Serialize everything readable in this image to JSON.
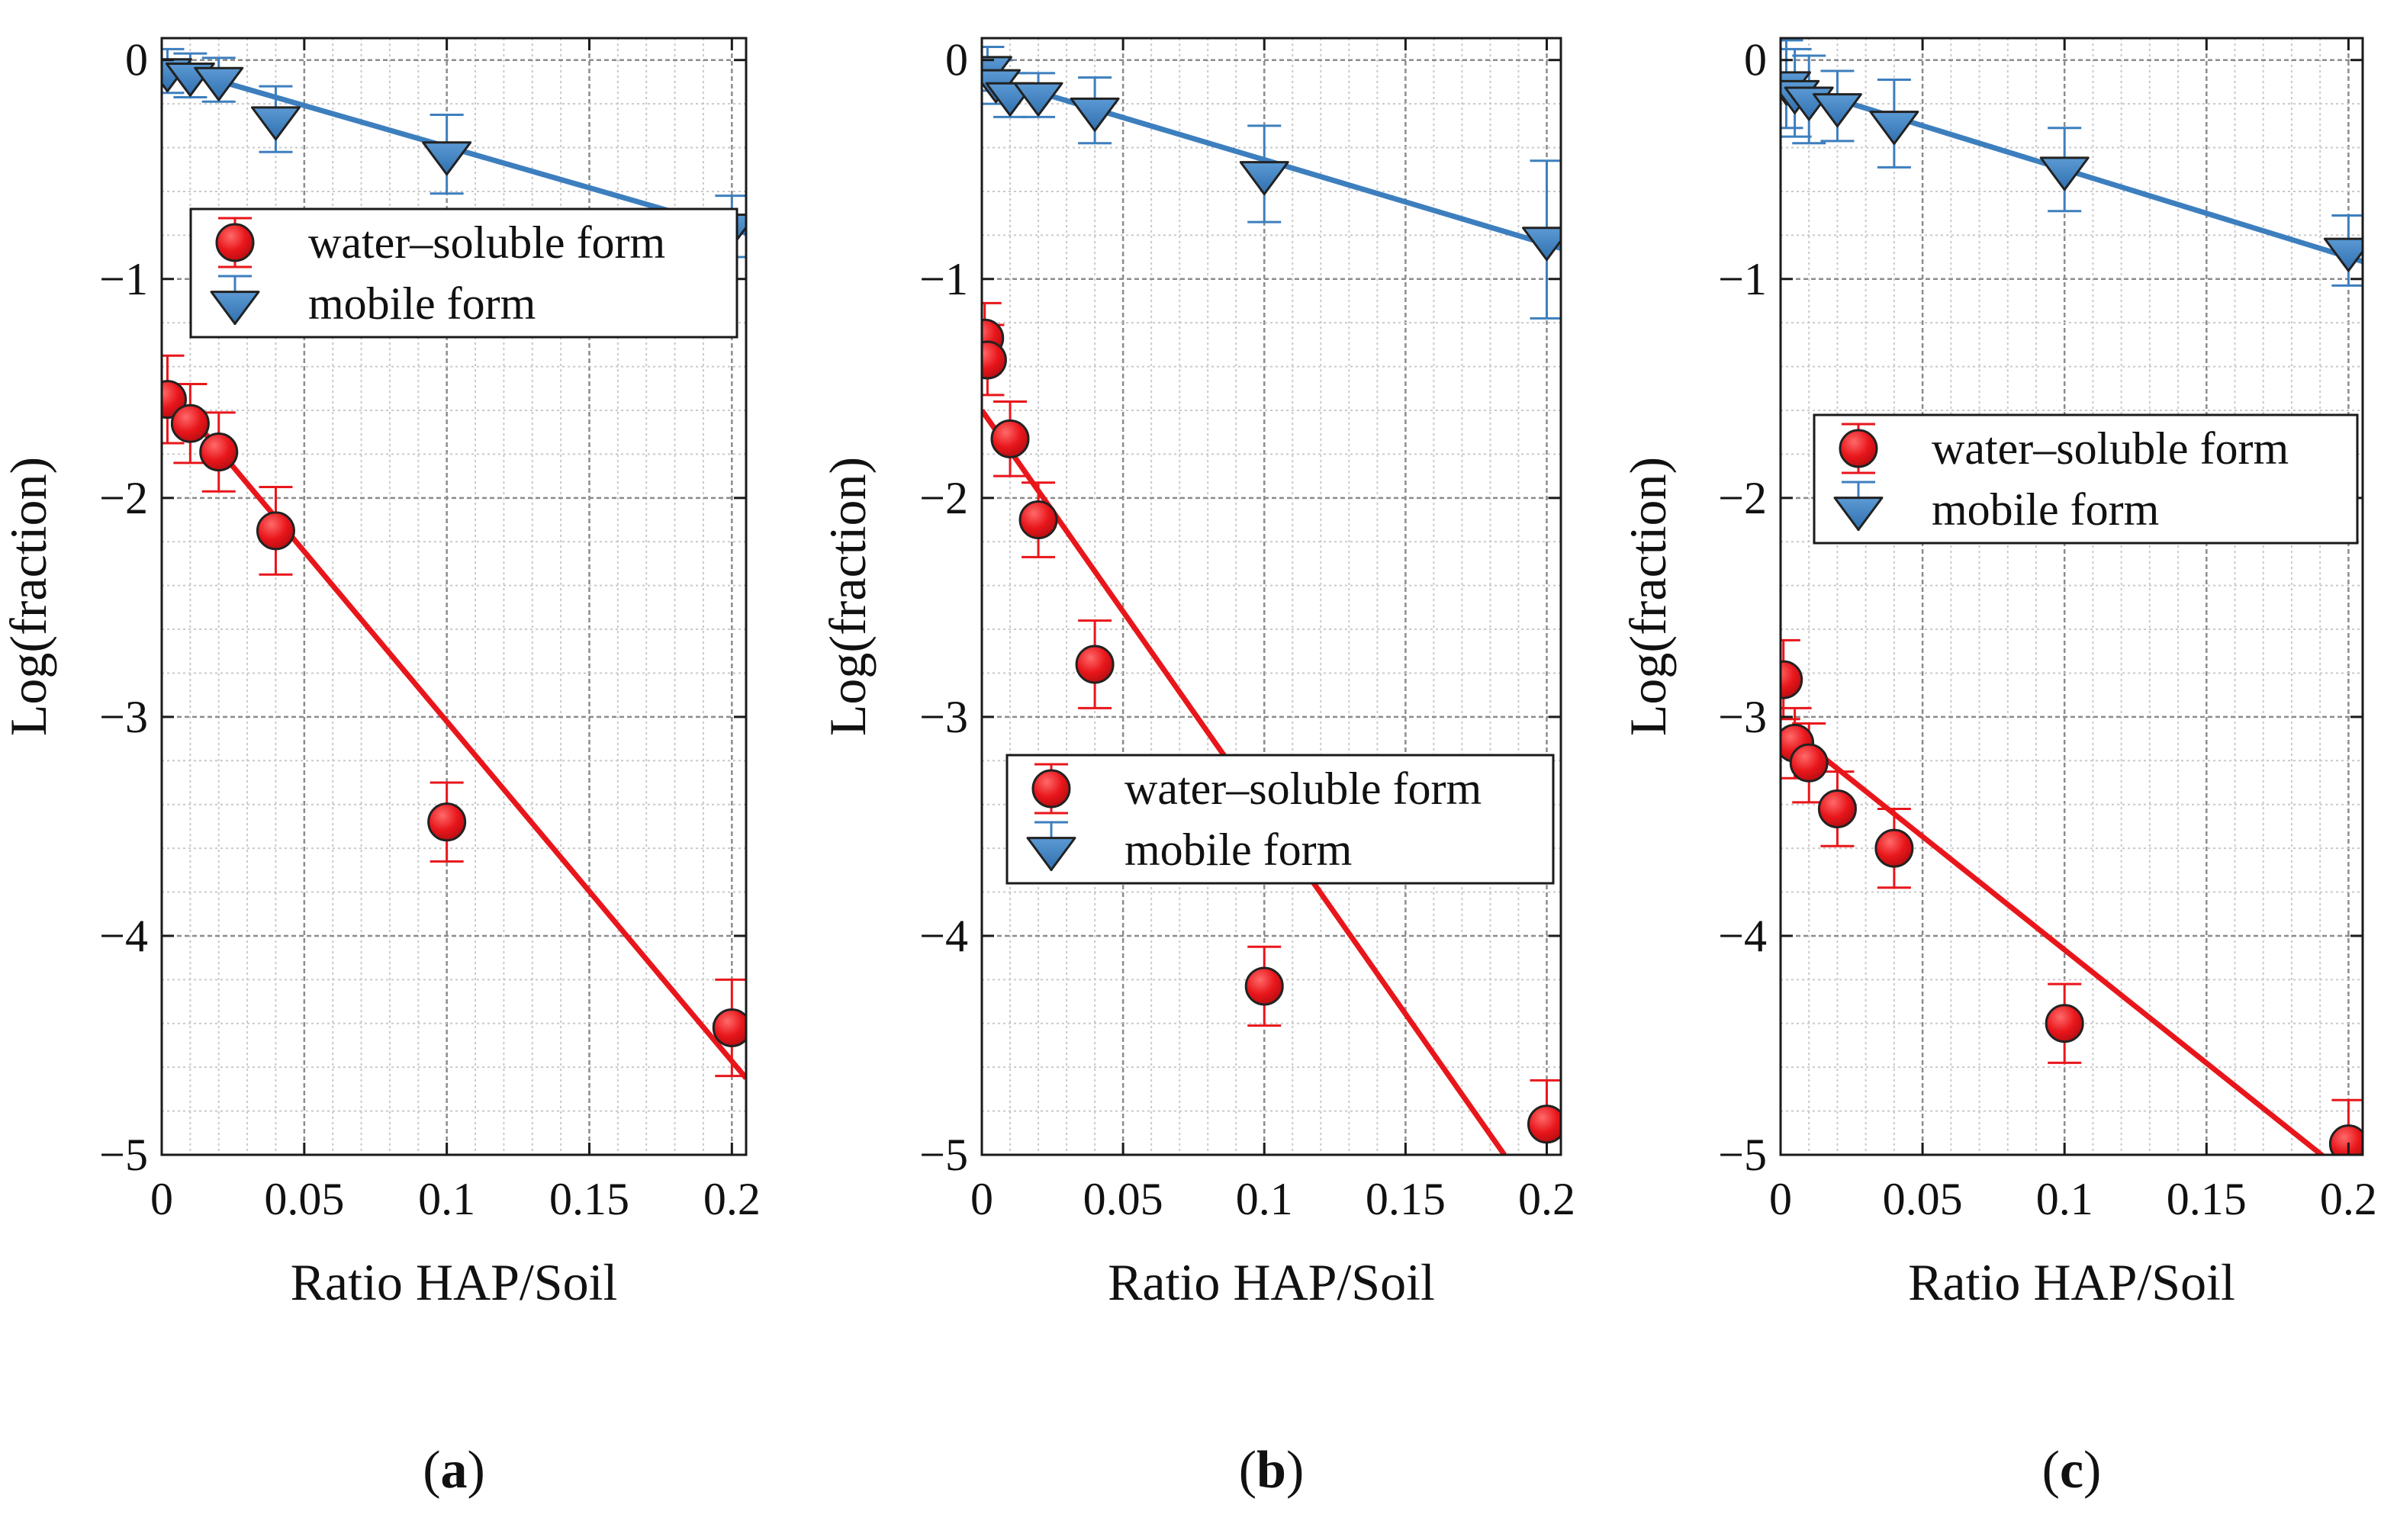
{
  "colors": {
    "water_soluble": "#e8161b",
    "mobile": "#3d7fbe",
    "marker_edge": "#222222",
    "grid_minor": "#c9c9c9",
    "grid_major": "#8c8c8c",
    "axis": "#1a1a1a"
  },
  "chart_data": [
    {
      "type": "scatter",
      "panel_label": {
        "open": "(",
        "letter": "a",
        "close": ")"
      },
      "xlabel": "Ratio HAP/Soil",
      "ylabel": "Log(fraction)",
      "xlim": [
        0,
        0.205
      ],
      "ylim": [
        -5,
        0.1
      ],
      "xticks": [
        0,
        0.05,
        0.1,
        0.15,
        0.2
      ],
      "xtick_labels": [
        "0",
        "0.05",
        "0.1",
        "0.15",
        "0.2"
      ],
      "yticks": [
        0,
        -1,
        -2,
        -3,
        -4,
        -5
      ],
      "ytick_labels": [
        "0",
        "−1",
        "−2",
        "−3",
        "−4",
        "−5"
      ],
      "grid": true,
      "legend": {
        "position": "upper-middle",
        "entries": [
          "water–soluble form",
          "mobile form"
        ]
      },
      "series": [
        {
          "name": "water–soluble form",
          "marker": "circle",
          "x": [
            0.002,
            0.01,
            0.02,
            0.04,
            0.1,
            0.2
          ],
          "y": [
            -1.55,
            -1.66,
            -1.79,
            -2.15,
            -3.48,
            -4.42
          ],
          "err": [
            0.2,
            0.18,
            0.18,
            0.2,
            0.18,
            0.22
          ],
          "fit": {
            "x": [
              0.002,
              0.205
            ],
            "y": [
              -1.5,
              -4.65
            ]
          }
        },
        {
          "name": "mobile form",
          "marker": "triangle-down",
          "x": [
            0.002,
            0.01,
            0.02,
            0.04,
            0.1,
            0.2
          ],
          "y": [
            -0.05,
            -0.07,
            -0.09,
            -0.27,
            -0.43,
            -0.76
          ],
          "err": [
            0.1,
            0.1,
            0.1,
            0.15,
            0.18,
            0.14
          ],
          "fit": {
            "x": [
              0,
              0.205
            ],
            "y": [
              -0.02,
              -0.79
            ]
          }
        }
      ]
    },
    {
      "type": "scatter",
      "panel_label": {
        "open": "(",
        "letter": "b",
        "close": ")"
      },
      "xlabel": "Ratio HAP/Soil",
      "ylabel": "Log(fraction)",
      "xlim": [
        0,
        0.205
      ],
      "ylim": [
        -5,
        0.1
      ],
      "xticks": [
        0,
        0.05,
        0.1,
        0.15,
        0.2
      ],
      "xtick_labels": [
        "0",
        "0.05",
        "0.1",
        "0.15",
        "0.2"
      ],
      "yticks": [
        0,
        -1,
        -2,
        -3,
        -4,
        -5
      ],
      "ytick_labels": [
        "0",
        "−1",
        "−2",
        "−3",
        "−4",
        "−5"
      ],
      "grid": true,
      "legend": {
        "position": "middle-right",
        "entries": [
          "water–soluble form",
          "mobile form"
        ]
      },
      "series": [
        {
          "name": "water–soluble form",
          "marker": "circle",
          "x": [
            0.001,
            0.002,
            0.01,
            0.02,
            0.04,
            0.1,
            0.2
          ],
          "y": [
            -1.27,
            -1.37,
            -1.73,
            -2.1,
            -2.76,
            -4.23,
            -4.86
          ],
          "err": [
            0.16,
            0.16,
            0.17,
            0.17,
            0.2,
            0.18,
            0.2
          ],
          "fit": {
            "x": [
              0,
              0.185
            ],
            "y": [
              -1.6,
              -5.0
            ]
          }
        },
        {
          "name": "mobile form",
          "marker": "triangle-down",
          "x": [
            0.002,
            0.005,
            0.01,
            0.02,
            0.04,
            0.1,
            0.2
          ],
          "y": [
            -0.04,
            -0.1,
            -0.16,
            -0.16,
            -0.23,
            -0.52,
            -0.82
          ],
          "err": [
            0.1,
            0.1,
            0.1,
            0.1,
            0.15,
            0.22,
            0.36
          ],
          "fit": {
            "x": [
              0,
              0.205
            ],
            "y": [
              -0.07,
              -0.86
            ]
          }
        }
      ]
    },
    {
      "type": "scatter",
      "panel_label": {
        "open": "(",
        "letter": "c",
        "close": ")"
      },
      "xlabel": "Ratio HAP/Soil",
      "ylabel": "Log(fraction)",
      "xlim": [
        0,
        0.205
      ],
      "ylim": [
        -5,
        0.1
      ],
      "xticks": [
        0,
        0.05,
        0.1,
        0.15,
        0.2
      ],
      "xtick_labels": [
        "0",
        "0.05",
        "0.1",
        "0.15",
        "0.2"
      ],
      "yticks": [
        0,
        -1,
        -2,
        -3,
        -4,
        -5
      ],
      "ytick_labels": [
        "0",
        "−1",
        "−2",
        "−3",
        "−4",
        "−5"
      ],
      "grid": true,
      "legend": {
        "position": "upper-right",
        "entries": [
          "water–soluble form",
          "mobile form"
        ]
      },
      "series": [
        {
          "name": "water–soluble form",
          "marker": "circle",
          "x": [
            0.001,
            0.005,
            0.01,
            0.02,
            0.04,
            0.1,
            0.2
          ],
          "y": [
            -2.83,
            -3.12,
            -3.21,
            -3.42,
            -3.6,
            -4.4,
            -4.95
          ],
          "err": [
            0.18,
            0.16,
            0.18,
            0.17,
            0.18,
            0.18,
            0.2
          ],
          "fit": {
            "x": [
              0.002,
              0.205
            ],
            "y": [
              -3.05,
              -5.15
            ]
          }
        },
        {
          "name": "mobile form",
          "marker": "triangle-down",
          "x": [
            0.002,
            0.005,
            0.01,
            0.02,
            0.04,
            0.1,
            0.2
          ],
          "y": [
            -0.11,
            -0.15,
            -0.18,
            -0.21,
            -0.29,
            -0.5,
            -0.87
          ],
          "err": [
            0.2,
            0.2,
            0.2,
            0.16,
            0.2,
            0.19,
            0.16
          ],
          "fit": {
            "x": [
              0,
              0.205
            ],
            "y": [
              -0.1,
              -0.92
            ]
          }
        }
      ]
    }
  ]
}
